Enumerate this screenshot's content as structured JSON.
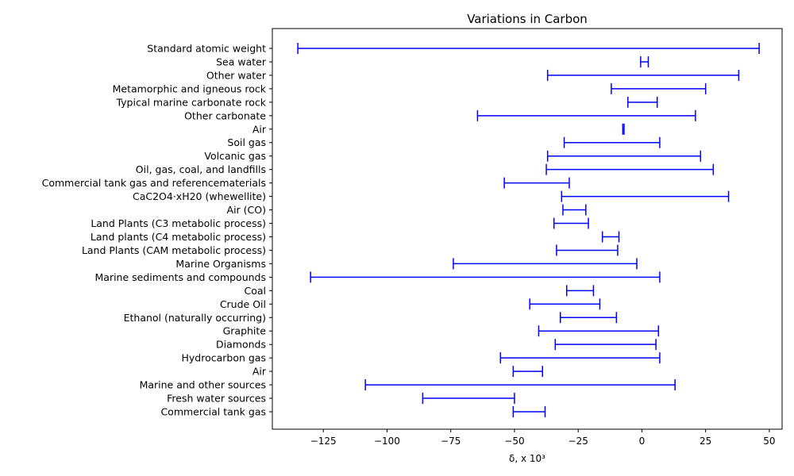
{
  "chart_data": {
    "type": "range",
    "title": "Variations  in Carbon",
    "xlabel": "δ, x 10³",
    "ylabel": "",
    "xlim": [
      -145,
      55
    ],
    "xticks": [
      -125,
      -100,
      -75,
      -50,
      -25,
      0,
      25,
      50
    ],
    "xtick_labels": [
      "−125",
      "−100",
      "−75",
      "−50",
      "−25",
      "0",
      "25",
      "50"
    ],
    "grid": false,
    "color": "#0000ff",
    "categories": [
      "Standard atomic weight",
      "Sea water",
      "Other water",
      "Metamorphic and igneous rock",
      "Typical marine carbonate rock",
      "Other carbonate",
      "Air",
      "Soil gas ",
      "Volcanic gas ",
      "Oil, gas, coal, and landfills ",
      "Commercial tank gas and referencematerials ",
      "CaC2O4·xH20 (whewellite)",
      "Air (CO)",
      "Land Plants (C3 metabolic process)",
      "Land plants (C4 metabolic process)",
      "Land Plants (CAM metabolic process)",
      "Marine Organisms ",
      "Marine sediments and compounds",
      "Coal",
      "Crude Oil",
      "Ethanol (naturally occurring)",
      "Graphite",
      "Diamonds",
      "Hydrocarbon gas",
      "Air ",
      "Marine and other sources ",
      "Fresh water sources ",
      "Commercial tank gas"
    ],
    "ranges": [
      [
        -135,
        46
      ],
      [
        -0.5,
        2.5
      ],
      [
        -37,
        38
      ],
      [
        -12,
        25
      ],
      [
        -5.5,
        6
      ],
      [
        -64.5,
        21
      ],
      [
        -7.5,
        -7
      ],
      [
        -30.5,
        7
      ],
      [
        -37,
        23
      ],
      [
        -37.5,
        28
      ],
      [
        -54,
        -28.5
      ],
      [
        -31.5,
        34
      ],
      [
        -31,
        -22
      ],
      [
        -34.5,
        -21
      ],
      [
        -15.5,
        -9
      ],
      [
        -33.5,
        -9.5
      ],
      [
        -74,
        -2
      ],
      [
        -130,
        7
      ],
      [
        -29.5,
        -19
      ],
      [
        -44,
        -16.5
      ],
      [
        -32,
        -10
      ],
      [
        -40.5,
        6.5
      ],
      [
        -34,
        5.5
      ],
      [
        -55.5,
        7
      ],
      [
        -50.5,
        -39
      ],
      [
        -108.5,
        13
      ],
      [
        -86,
        -50
      ],
      [
        -50.5,
        -38
      ]
    ]
  }
}
